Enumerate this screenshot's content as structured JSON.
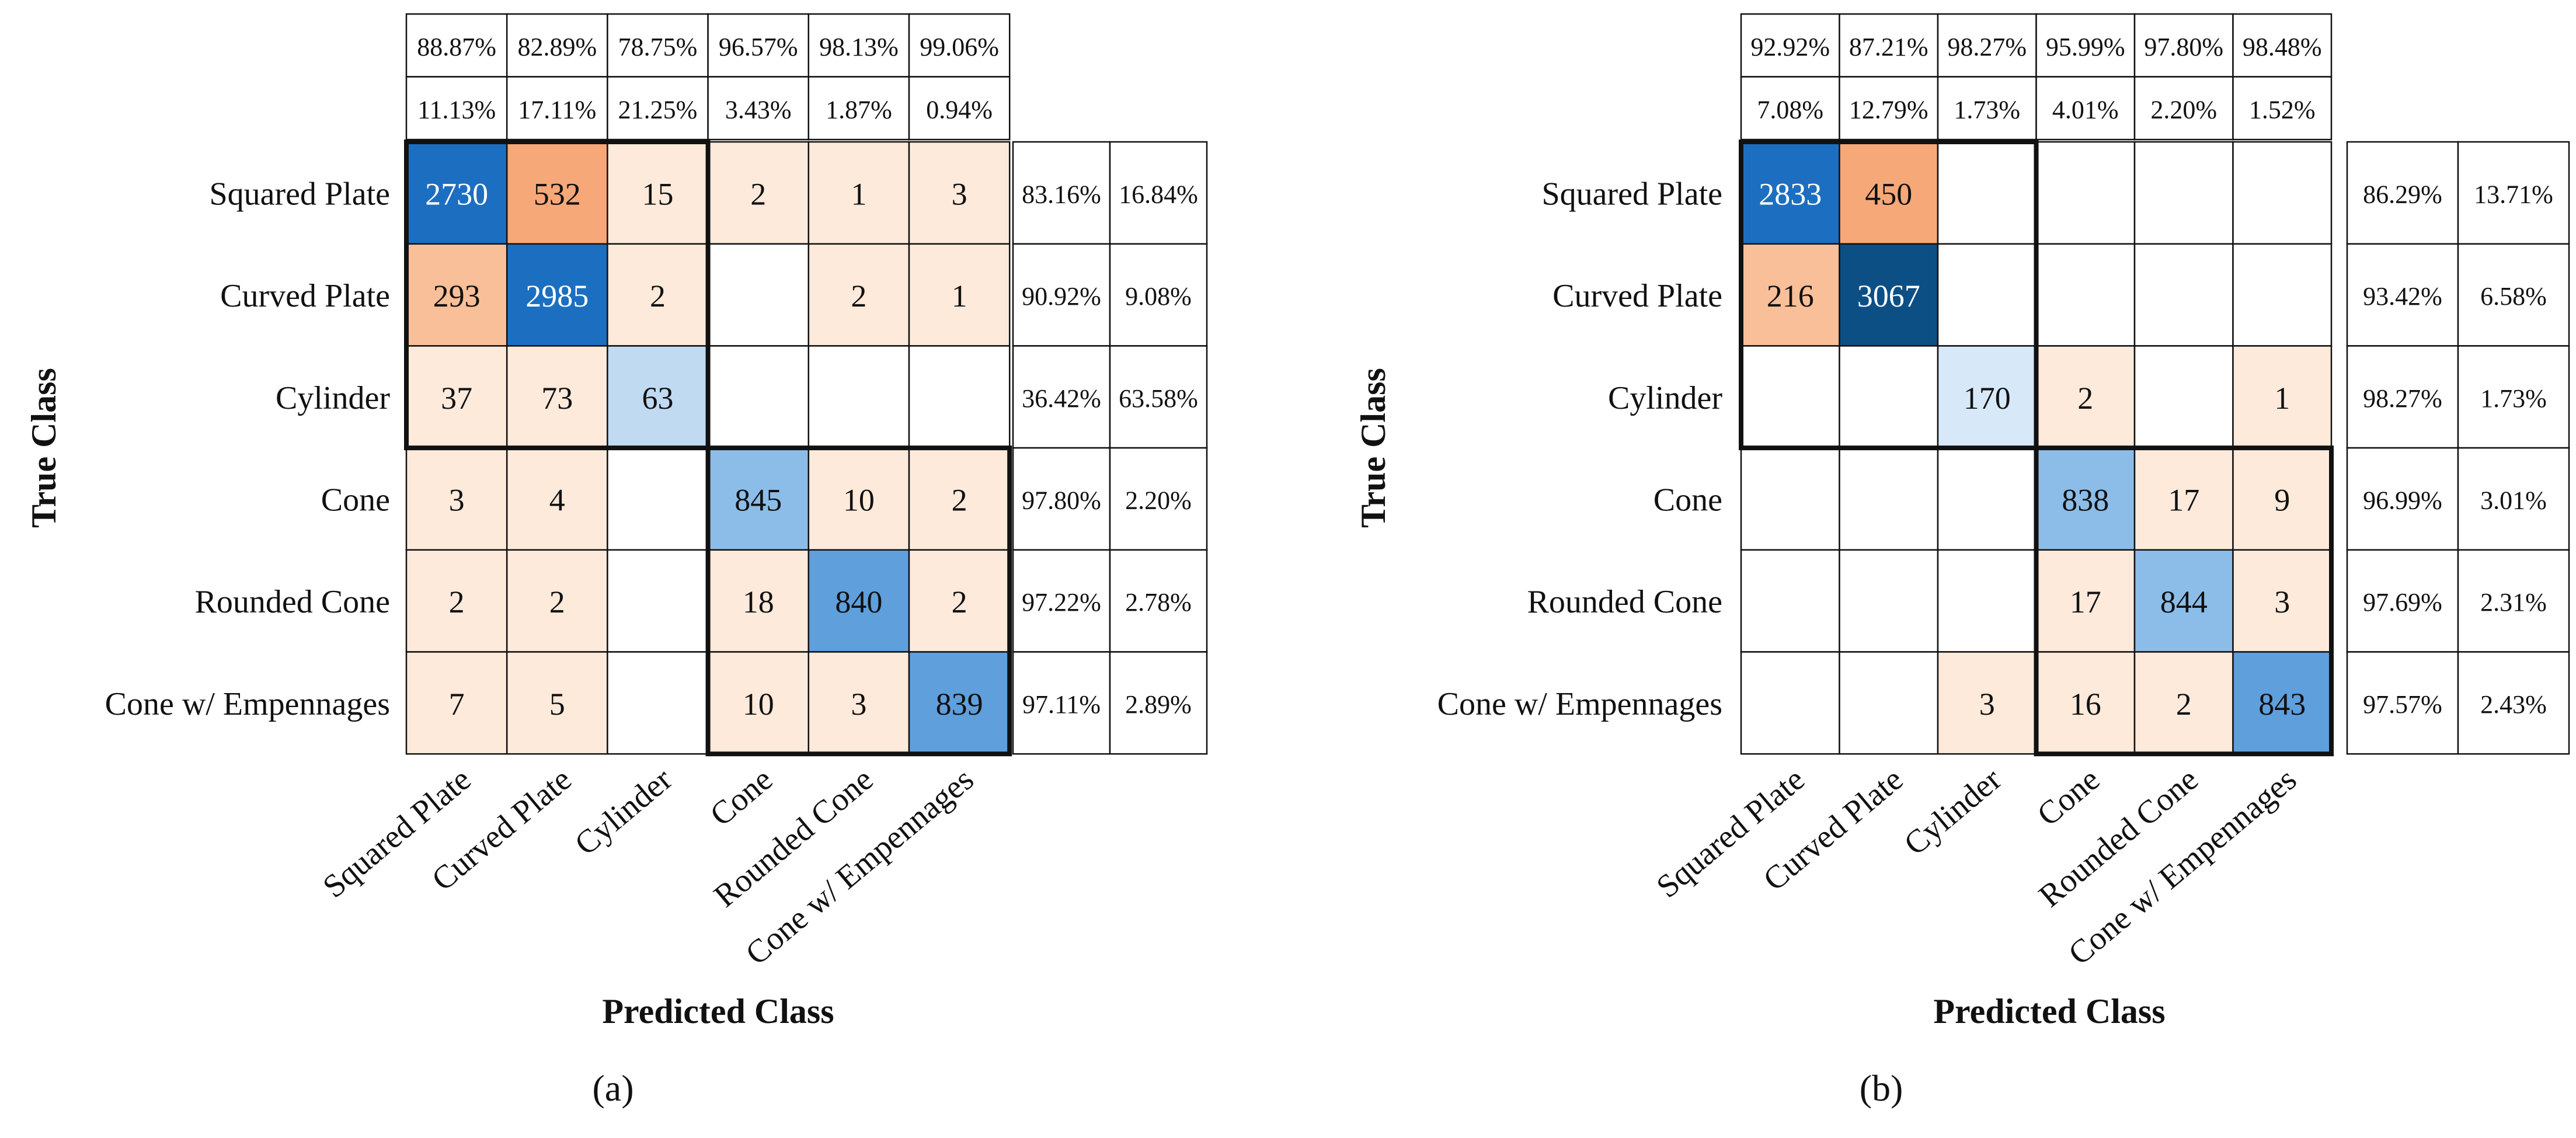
{
  "figure": {
    "shared": {
      "x_title": "Predicted Class",
      "y_title": "True Class"
    },
    "palette": {
      "orange_light": "#fdeadb",
      "orange_mid": "#f9bf98",
      "orange_strong": "#f6a878",
      "blue_light": "#d7e8f8",
      "blue_mid": "#c0daf2",
      "blue_strong_1": "#8cbde9",
      "blue_strong_2": "#7fb5e6",
      "blue_strong_3": "#5f9fdc",
      "blue_dark": "#1c6fc0",
      "blue_darkest": "#0b4f85",
      "grid": "#111111",
      "text": "#111111"
    }
  },
  "chart_data": [
    {
      "type": "heatmap",
      "panel_label": "(a)",
      "xlabel": "Predicted Class",
      "ylabel": "True Class",
      "row_labels": [
        "Squared Plate",
        "Curved Plate",
        "Cylinder",
        "Cone",
        "Rounded Cone",
        "Cone w/ Empennages"
      ],
      "col_labels": [
        "Squared Plate",
        "Curved Plate",
        "Cylinder",
        "Cone",
        "Rounded Cone",
        "Cone w/ Empennages"
      ],
      "matrix": [
        [
          2730,
          532,
          15,
          2,
          1,
          3
        ],
        [
          293,
          2985,
          2,
          null,
          2,
          1
        ],
        [
          37,
          73,
          63,
          null,
          null,
          null
        ],
        [
          3,
          4,
          null,
          845,
          10,
          2
        ],
        [
          2,
          2,
          null,
          18,
          840,
          2
        ],
        [
          7,
          5,
          null,
          10,
          3,
          839
        ]
      ],
      "precision": [
        "88.87%",
        "82.89%",
        "78.75%",
        "96.57%",
        "98.13%",
        "99.06%"
      ],
      "false_discovery": [
        "11.13%",
        "17.11%",
        "21.25%",
        "3.43%",
        "1.87%",
        "0.94%"
      ],
      "recall": [
        "83.16%",
        "90.92%",
        "36.42%",
        "97.80%",
        "97.22%",
        "97.11%"
      ],
      "false_negative": [
        "16.84%",
        "9.08%",
        "63.58%",
        "2.20%",
        "2.78%",
        "2.89%"
      ],
      "groups": [
        [
          0,
          2
        ],
        [
          3,
          5
        ]
      ]
    },
    {
      "type": "heatmap",
      "panel_label": "(b)",
      "xlabel": "Predicted Class",
      "ylabel": "True Class",
      "row_labels": [
        "Squared Plate",
        "Curved Plate",
        "Cylinder",
        "Cone",
        "Rounded Cone",
        "Cone w/ Empennages"
      ],
      "col_labels": [
        "Squared Plate",
        "Curved Plate",
        "Cylinder",
        "Cone",
        "Rounded Cone",
        "Cone w/ Empennages"
      ],
      "matrix": [
        [
          2833,
          450,
          null,
          null,
          null,
          null
        ],
        [
          216,
          3067,
          null,
          null,
          null,
          null
        ],
        [
          null,
          null,
          170,
          2,
          null,
          1
        ],
        [
          null,
          null,
          null,
          838,
          17,
          9
        ],
        [
          null,
          null,
          null,
          17,
          844,
          3
        ],
        [
          null,
          null,
          3,
          16,
          2,
          843
        ]
      ],
      "precision": [
        "92.92%",
        "87.21%",
        "98.27%",
        "95.99%",
        "97.80%",
        "98.48%"
      ],
      "false_discovery": [
        "7.08%",
        "12.79%",
        "1.73%",
        "4.01%",
        "2.20%",
        "1.52%"
      ],
      "recall": [
        "86.29%",
        "93.42%",
        "98.27%",
        "96.99%",
        "97.69%",
        "97.57%"
      ],
      "false_negative": [
        "13.71%",
        "6.58%",
        "1.73%",
        "3.01%",
        "2.31%",
        "2.43%"
      ],
      "groups": [
        [
          0,
          2
        ],
        [
          3,
          5
        ]
      ]
    }
  ]
}
